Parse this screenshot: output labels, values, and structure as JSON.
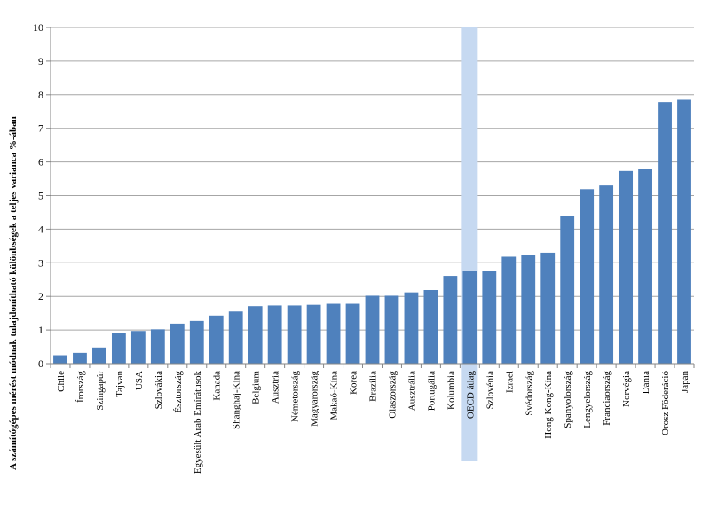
{
  "chart_data": {
    "type": "bar",
    "title": "",
    "xlabel": "",
    "ylabel": "A számítógépes mérést módnak tulajdonítható különbségek a teljes varianca %-ában",
    "ylim": [
      0,
      10
    ],
    "yticks": [
      0,
      1,
      2,
      3,
      4,
      5,
      6,
      7,
      8,
      9,
      10
    ],
    "grid": true,
    "legend": "none",
    "highlight_category": "OECD átlag",
    "colors": {
      "bar": "#4f81bd",
      "highlight": "#c6d9f1",
      "grid": "#a6a6a6"
    },
    "categories": [
      "Chile",
      "Írország",
      "Szingapúr",
      "Tajvan",
      "USA",
      "Szlovákia",
      "Észtország",
      "Egyesült Arab Emírátusok",
      "Kanada",
      "Shanghaj-Kína",
      "Belgium",
      "Ausztria",
      "Németország",
      "Magyarország",
      "Makaó-Kína",
      "Korea",
      "Brazília",
      "Olaszország",
      "Ausztrália",
      "Portugália",
      "Kolumbia",
      "OECD átlag",
      "Szlovénia",
      "Izrael",
      "Svédország",
      "Hong Kong-Kína",
      "Spanyolország",
      "Lengyelország",
      "Franciaország",
      "Norvégia",
      "Dánia",
      "Orosz Föderáció",
      "Japán"
    ],
    "values": [
      0.25,
      0.32,
      0.48,
      0.92,
      0.97,
      1.02,
      1.19,
      1.27,
      1.43,
      1.55,
      1.71,
      1.73,
      1.73,
      1.75,
      1.78,
      1.78,
      2.02,
      2.02,
      2.12,
      2.19,
      2.61,
      2.75,
      2.75,
      3.18,
      3.22,
      3.3,
      4.39,
      5.19,
      5.3,
      5.73,
      5.8,
      7.78,
      7.85
    ]
  }
}
